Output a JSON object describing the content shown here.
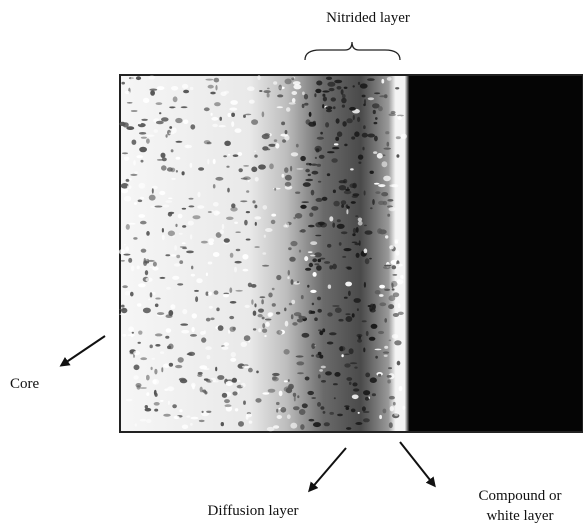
{
  "labels": {
    "nitrided_layer": "Nitrided layer",
    "core": "Core",
    "diffusion_layer": "Diffusion layer",
    "compound_layer": [
      "Compound or",
      "white layer"
    ]
  }
}
